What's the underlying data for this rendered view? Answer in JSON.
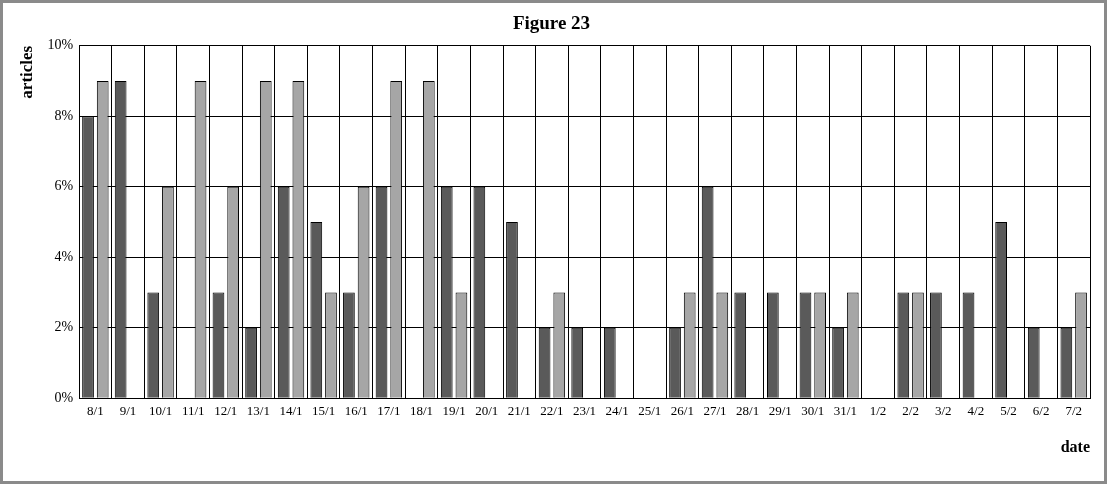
{
  "chart_data": {
    "type": "bar",
    "title": "Figure 23",
    "xlabel": "date",
    "ylabel": "articles",
    "categories": [
      "8/1",
      "9/1",
      "10/1",
      "11/1",
      "12/1",
      "13/1",
      "14/1",
      "15/1",
      "16/1",
      "17/1",
      "18/1",
      "19/1",
      "20/1",
      "21/1",
      "22/1",
      "23/1",
      "24/1",
      "25/1",
      "26/1",
      "27/1",
      "28/1",
      "29/1",
      "30/1",
      "31/1",
      "1/2",
      "2/2",
      "3/2",
      "4/2",
      "5/2",
      "6/2",
      "7/2"
    ],
    "series": [
      {
        "color": "#5a5a5a",
        "values": [
          8,
          9,
          3,
          0,
          3,
          2,
          6,
          5,
          3,
          6,
          0,
          6,
          6,
          5,
          2,
          2,
          2,
          0,
          2,
          6,
          3,
          3,
          3,
          2,
          0,
          3,
          3,
          3,
          5,
          2,
          2
        ]
      },
      {
        "color": "#a6a6a6",
        "values": [
          9,
          0,
          6,
          9,
          6,
          9,
          9,
          3,
          6,
          9,
          9,
          3,
          0,
          0,
          3,
          0,
          0,
          0,
          3,
          3,
          0,
          0,
          3,
          3,
          0,
          3,
          0,
          0,
          0,
          0,
          3
        ]
      }
    ],
    "ylim": [
      0,
      10
    ],
    "yticks": [
      {
        "value": 0,
        "label": "0%"
      },
      {
        "value": 2,
        "label": "2%"
      },
      {
        "value": 4,
        "label": "4%"
      },
      {
        "value": 6,
        "label": "6%"
      },
      {
        "value": 8,
        "label": "8%"
      },
      {
        "value": 10,
        "label": "10%"
      }
    ],
    "grid": true
  }
}
